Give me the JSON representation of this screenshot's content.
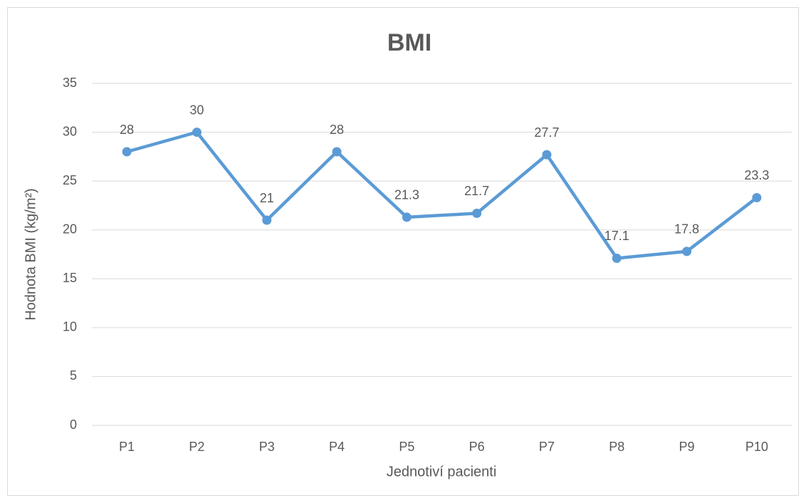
{
  "chart_data": {
    "type": "line",
    "title": "BMI",
    "x_label": "Jednotiví pacienti",
    "y_label": "Hodnota BMI (kg/m²)",
    "categories": [
      "P1",
      "P2",
      "P3",
      "P4",
      "P5",
      "P6",
      "P7",
      "P8",
      "P9",
      "P10"
    ],
    "series": [
      {
        "name": "BMI",
        "color": "#5b9bd5",
        "values": [
          28,
          30,
          21,
          28,
          21.3,
          21.7,
          27.7,
          17.1,
          17.8,
          23.3
        ]
      }
    ],
    "ylim": [
      0,
      35
    ],
    "yticks": [
      0,
      5,
      10,
      15,
      20,
      25,
      30,
      35
    ],
    "grid": true,
    "data_labels": true
  }
}
